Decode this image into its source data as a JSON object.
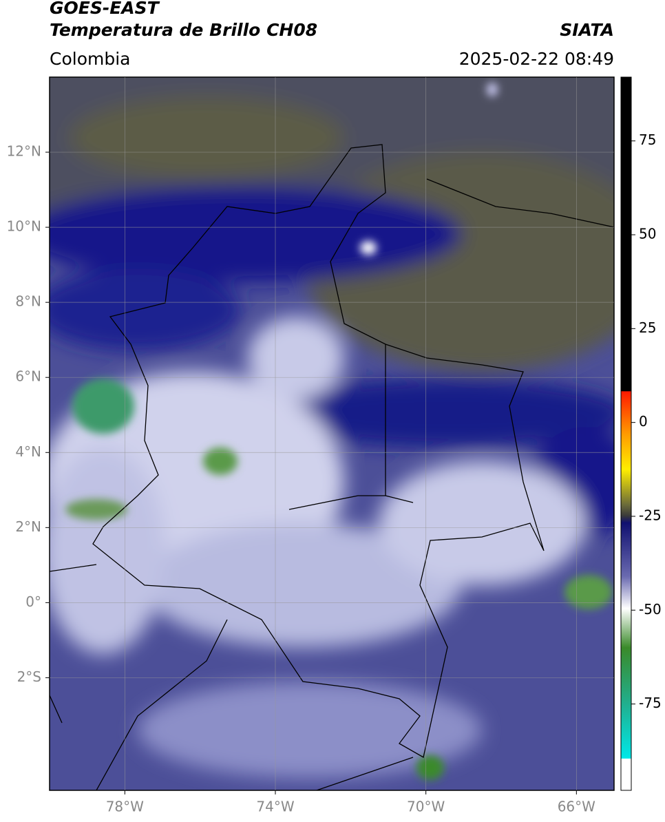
{
  "header": {
    "title": "GOES-EAST",
    "subtitle": "Temperatura de Brillo CH08",
    "source": "SIATA",
    "region": "Colombia",
    "datetime": "2025-02-22 08:49"
  },
  "map": {
    "lon_range": [
      -80,
      -65
    ],
    "lat_range": [
      -5,
      14
    ],
    "grid": true,
    "lat_ticks": [
      {
        "value": 12,
        "label": "12°N"
      },
      {
        "value": 10,
        "label": "10°N"
      },
      {
        "value": 8,
        "label": "8°N"
      },
      {
        "value": 6,
        "label": "6°N"
      },
      {
        "value": 4,
        "label": "4°N"
      },
      {
        "value": 2,
        "label": "2°N"
      },
      {
        "value": 0,
        "label": "0°"
      },
      {
        "value": -2,
        "label": "2°S"
      }
    ],
    "lon_ticks": [
      {
        "value": -78,
        "label": "78°W"
      },
      {
        "value": -74,
        "label": "74°W"
      },
      {
        "value": -70,
        "label": "70°W"
      },
      {
        "value": -66,
        "label": "66°W"
      }
    ]
  },
  "colorbar": {
    "range": [
      -98,
      92
    ],
    "ticks": [
      75,
      50,
      25,
      0,
      -25,
      -50,
      -75
    ]
  }
}
